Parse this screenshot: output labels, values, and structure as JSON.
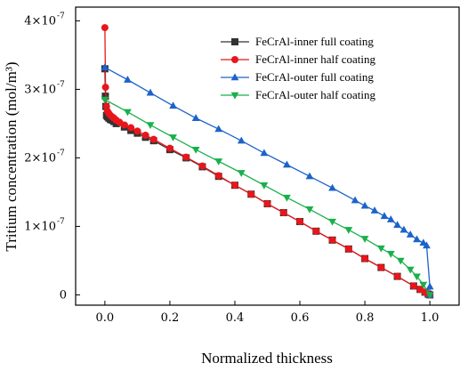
{
  "chart_data": {
    "type": "line",
    "xlabel": "Normalized thickness",
    "ylabel": "Tritium concentration (mol/m³)",
    "xlim": [
      -0.09,
      1.09
    ],
    "ylim": [
      -1.5e-08,
      4.2e-07
    ],
    "x_ticks": [
      {
        "value": 0.0,
        "label": "0.0"
      },
      {
        "value": 0.2,
        "label": "0.2"
      },
      {
        "value": 0.4,
        "label": "0.4"
      },
      {
        "value": 0.6,
        "label": "0.6"
      },
      {
        "value": 0.8,
        "label": "0.8"
      },
      {
        "value": 1.0,
        "label": "1.0"
      }
    ],
    "y_ticks": [
      {
        "value": 0,
        "label": "0"
      },
      {
        "value": 1e-07,
        "label": "1×10"
      },
      {
        "value": 2e-07,
        "label": "2×10"
      },
      {
        "value": 3e-07,
        "label": "3×10"
      },
      {
        "value": 4e-07,
        "label": "4×10"
      }
    ],
    "y_tick_exponent": "-7",
    "legend_position": "top-right",
    "series": [
      {
        "name": "FeCrAl-inner full coating",
        "color": "#333333",
        "marker": "square",
        "x": [
          0.0,
          0.0015,
          0.003,
          0.005,
          0.008,
          0.012,
          0.017,
          0.022,
          0.028,
          0.035,
          0.06,
          0.08,
          0.1,
          0.125,
          0.15,
          0.2,
          0.25,
          0.3,
          0.35,
          0.4,
          0.45,
          0.5,
          0.55,
          0.6,
          0.65,
          0.7,
          0.75,
          0.8,
          0.85,
          0.9,
          0.95,
          0.97,
          0.985,
          0.995,
          1.0
        ],
        "y": [
          3.3e-07,
          2.9e-07,
          2.75e-07,
          2.62e-07,
          2.6e-07,
          2.58e-07,
          2.56e-07,
          2.55e-07,
          2.53e-07,
          2.5e-07,
          2.45e-07,
          2.4e-07,
          2.36e-07,
          2.3e-07,
          2.25e-07,
          2.12e-07,
          2e-07,
          1.87e-07,
          1.73e-07,
          1.6e-07,
          1.47e-07,
          1.33e-07,
          1.2e-07,
          1.07e-07,
          9.3e-08,
          8e-08,
          6.7e-08,
          5.3e-08,
          4e-08,
          2.7e-08,
          1.3e-08,
          8e-09,
          4e-09,
          1e-09,
          0.0
        ]
      },
      {
        "name": "FeCrAl-inner half coating",
        "color": "#e8161b",
        "marker": "circle",
        "x": [
          0.0,
          0.002,
          0.005,
          0.008,
          0.012,
          0.017,
          0.022,
          0.028,
          0.035,
          0.045,
          0.06,
          0.08,
          0.1,
          0.125,
          0.15,
          0.2,
          0.25,
          0.3,
          0.35,
          0.4,
          0.45,
          0.5,
          0.55,
          0.6,
          0.65,
          0.7,
          0.75,
          0.8,
          0.85,
          0.9,
          0.95,
          0.97,
          0.985,
          0.995,
          1.0
        ],
        "y": [
          3.9e-07,
          3.03e-07,
          2.75e-07,
          2.68e-07,
          2.65e-07,
          2.62e-07,
          2.6e-07,
          2.58e-07,
          2.55e-07,
          2.52e-07,
          2.48e-07,
          2.44e-07,
          2.39e-07,
          2.33e-07,
          2.27e-07,
          2.14e-07,
          2.01e-07,
          1.88e-07,
          1.74e-07,
          1.6e-07,
          1.47e-07,
          1.33e-07,
          1.2e-07,
          1.07e-07,
          9.3e-08,
          8e-08,
          6.7e-08,
          5.3e-08,
          4e-08,
          2.7e-08,
          1.3e-08,
          8e-09,
          4e-09,
          1e-09,
          0.0
        ]
      },
      {
        "name": "FeCrAl-outer full coating",
        "color": "#1c63c9",
        "marker": "triangle-up",
        "x": [
          0.0,
          0.07,
          0.14,
          0.21,
          0.28,
          0.35,
          0.42,
          0.49,
          0.56,
          0.63,
          0.7,
          0.77,
          0.8,
          0.83,
          0.86,
          0.88,
          0.9,
          0.92,
          0.94,
          0.96,
          0.98,
          0.99,
          1.0,
          1.0
        ],
        "y": [
          3.32e-07,
          3.14e-07,
          2.95e-07,
          2.76e-07,
          2.58e-07,
          2.42e-07,
          2.25e-07,
          2.07e-07,
          1.9e-07,
          1.73e-07,
          1.56e-07,
          1.38e-07,
          1.3e-07,
          1.23e-07,
          1.15e-07,
          1.1e-07,
          1.02e-07,
          9.5e-08,
          8.8e-08,
          8.1e-08,
          7.6e-08,
          7.2e-08,
          1.2e-08,
          0.0
        ]
      },
      {
        "name": "FeCrAl-outer half coating",
        "color": "#19b04b",
        "marker": "triangle-down",
        "x": [
          0.0,
          0.07,
          0.14,
          0.21,
          0.28,
          0.35,
          0.42,
          0.49,
          0.56,
          0.63,
          0.7,
          0.75,
          0.8,
          0.85,
          0.88,
          0.91,
          0.94,
          0.96,
          0.98,
          1.0
        ],
        "y": [
          2.85e-07,
          2.67e-07,
          2.48e-07,
          2.3e-07,
          2.12e-07,
          1.95e-07,
          1.78e-07,
          1.6e-07,
          1.42e-07,
          1.25e-07,
          1.07e-07,
          9.5e-08,
          8.2e-08,
          6.8e-08,
          6e-08,
          5e-08,
          3.7e-08,
          2.7e-08,
          1.5e-08,
          0.0
        ]
      }
    ]
  }
}
